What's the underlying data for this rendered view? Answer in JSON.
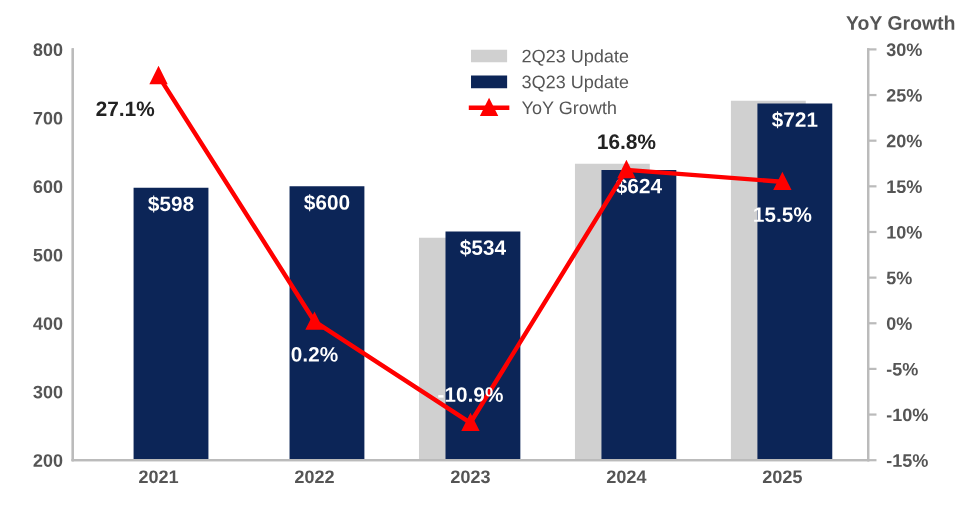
{
  "chart_data": {
    "type": "bar",
    "categories": [
      "2021",
      "2022",
      "2023",
      "2024",
      "2025"
    ],
    "series": [
      {
        "name": "2Q23 Update",
        "color": "#d0d0d0",
        "values": [
          null,
          null,
          525,
          633,
          725
        ]
      },
      {
        "name": "3Q23 Update",
        "color": "#0c2557",
        "values": [
          598,
          600,
          534,
          624,
          721
        ],
        "value_labels": [
          "$598",
          "$600",
          "$534",
          "$624",
          "$721"
        ]
      },
      {
        "name": "YoY Growth",
        "type": "line",
        "axis": "y2",
        "color": "#ff0000",
        "marker": "triangle",
        "values": [
          27.1,
          0.2,
          -10.9,
          16.8,
          15.5
        ],
        "value_labels": [
          "27.1%",
          "0.2%",
          "-10.9%",
          "16.8%",
          "15.5%"
        ]
      }
    ],
    "ylim": [
      200,
      800
    ],
    "yticks": [
      200,
      300,
      400,
      500,
      600,
      700,
      800
    ],
    "y2lim": [
      -15,
      30
    ],
    "y2ticks": [
      {
        "value": -15,
        "label": "-15%"
      },
      {
        "value": -10,
        "label": "-10%"
      },
      {
        "value": -5,
        "label": "-5%"
      },
      {
        "value": 0,
        "label": "0%"
      },
      {
        "value": 5,
        "label": "5%"
      },
      {
        "value": 10,
        "label": "10%"
      },
      {
        "value": 15,
        "label": "15%"
      },
      {
        "value": 20,
        "label": "20%"
      },
      {
        "value": 25,
        "label": "25%"
      },
      {
        "value": 30,
        "label": "30%"
      }
    ],
    "y2label": "YoY Growth",
    "legend": "top",
    "grid": false
  }
}
